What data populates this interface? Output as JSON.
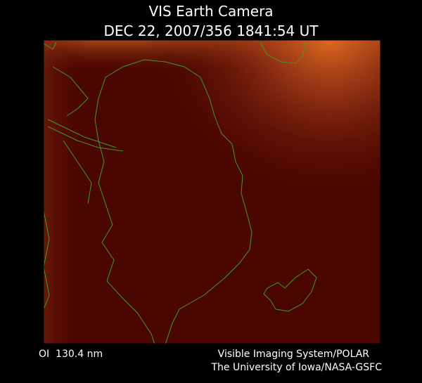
{
  "header": {
    "title": "VIS Earth Camera",
    "timestamp": "DEC 22, 2007/356 1841:54 UT"
  },
  "footer": {
    "wavelength": "OI  130.4 nm",
    "instrument": "Visible Imaging System/POLAR",
    "institution": "The University of Iowa/NASA-GSFC"
  }
}
